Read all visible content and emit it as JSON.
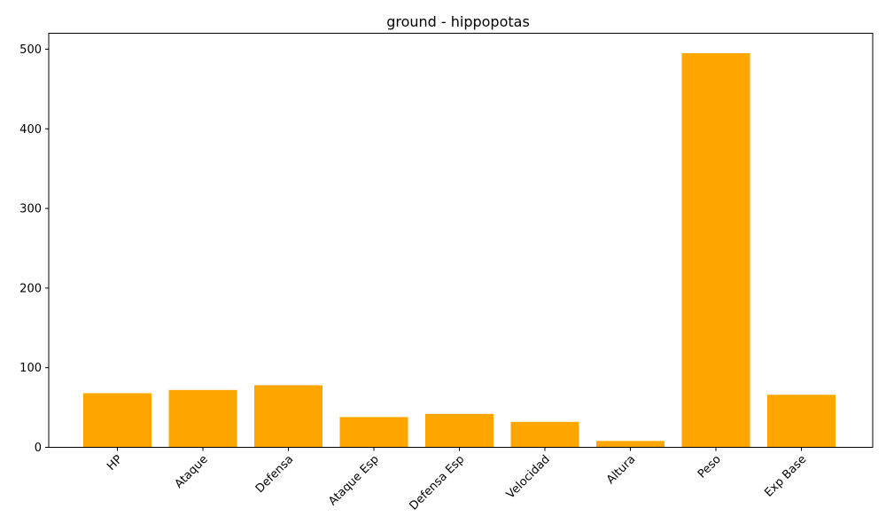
{
  "chart_data": {
    "type": "bar",
    "title": "ground - hippopotas",
    "xlabel": "",
    "ylabel": "",
    "categories": [
      "HP",
      "Ataque",
      "Defensa",
      "Ataque Esp",
      "Defensa Esp",
      "Velocidad",
      "Altura",
      "Peso",
      "Exp Base"
    ],
    "values": [
      68,
      72,
      78,
      38,
      42,
      32,
      8,
      495,
      66
    ],
    "ylim": [
      0,
      520
    ],
    "yticks": [
      0,
      100,
      200,
      300,
      400,
      500
    ],
    "bar_color": "#ffa500",
    "grid": false,
    "x_tick_rotation_deg": 45
  }
}
